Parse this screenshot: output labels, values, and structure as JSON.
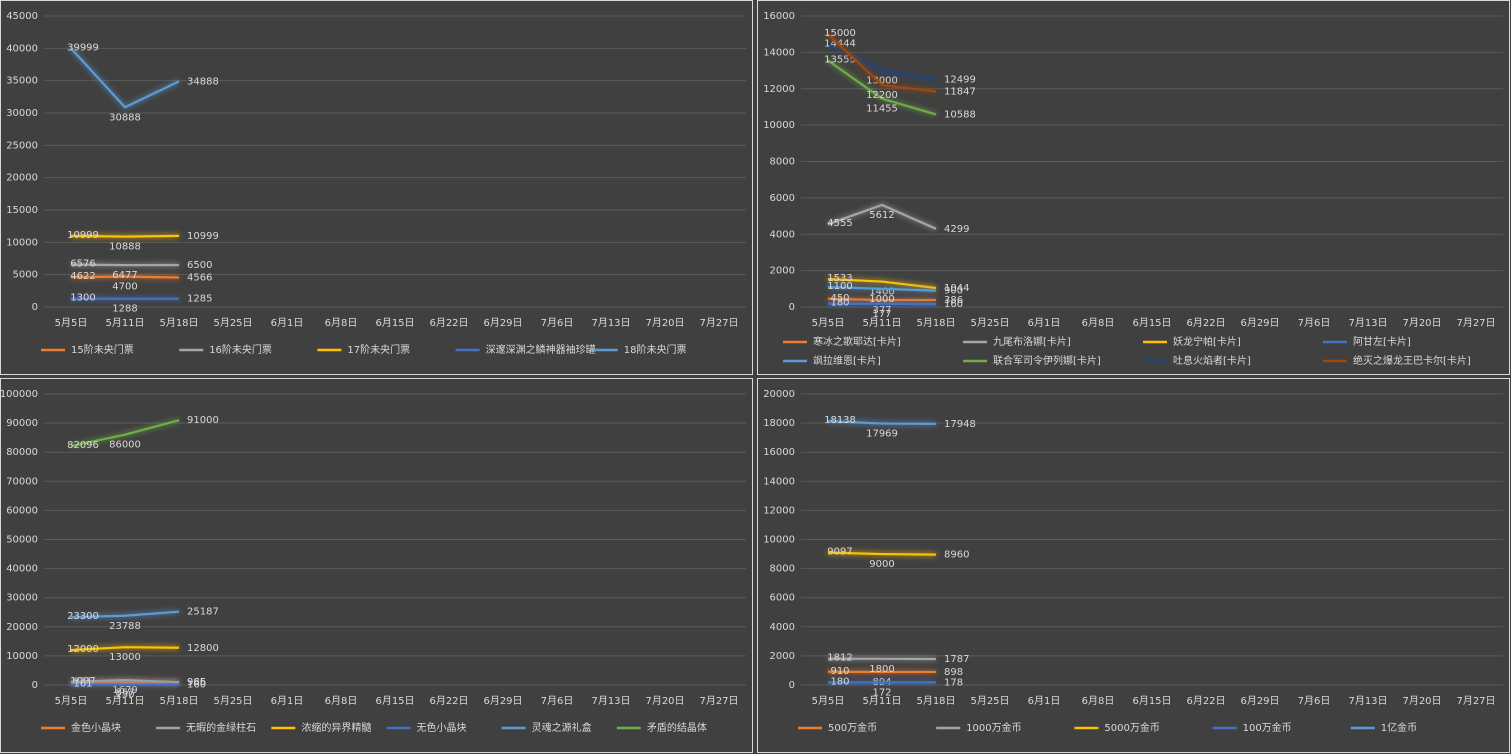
{
  "chart_data": [
    {
      "type": "line",
      "categories": [
        "5月5日",
        "5月11日",
        "5月18日",
        "5月25日",
        "6月1日",
        "6月8日",
        "6月15日",
        "6月22日",
        "6月29日",
        "7月6日",
        "7月13日",
        "7月20日",
        "7月27日"
      ],
      "ylim": [
        0,
        45000
      ],
      "yticks": [
        0,
        5000,
        10000,
        15000,
        20000,
        25000,
        30000,
        35000,
        40000,
        45000
      ],
      "grid": true,
      "series": [
        {
          "name": "15阶未央门票",
          "color": "#ed7d31",
          "values": [
            4622,
            4700,
            4566,
            null,
            null,
            null,
            null,
            null,
            null,
            null,
            null,
            null,
            null
          ]
        },
        {
          "name": "16阶未央门票",
          "color": "#a5a5a5",
          "values": [
            6576,
            6477,
            6500,
            null,
            null,
            null,
            null,
            null,
            null,
            null,
            null,
            null,
            null
          ]
        },
        {
          "name": "17阶未央门票",
          "color": "#ffc000",
          "values": [
            10999,
            10888,
            10999,
            null,
            null,
            null,
            null,
            null,
            null,
            null,
            null,
            null,
            null
          ]
        },
        {
          "name": "深邃深渊之鳞神器袖珍罐",
          "color": "#4472c4",
          "values": [
            1300,
            1288,
            1285,
            null,
            null,
            null,
            null,
            null,
            null,
            null,
            null,
            null,
            null
          ]
        },
        {
          "name": "18阶未央门票",
          "color": "#5b9bd5",
          "values": [
            39999,
            30888,
            34888,
            null,
            null,
            null,
            null,
            null,
            null,
            null,
            null,
            null,
            null
          ]
        }
      ]
    },
    {
      "type": "line",
      "categories": [
        "5月5日",
        "5月11日",
        "5月18日",
        "5月25日",
        "6月1日",
        "6月8日",
        "6月15日",
        "6月22日",
        "6月29日",
        "7月6日",
        "7月13日",
        "7月20日",
        "7月27日"
      ],
      "ylim": [
        0,
        16000
      ],
      "yticks": [
        0,
        2000,
        4000,
        6000,
        8000,
        10000,
        12000,
        14000,
        16000
      ],
      "grid": true,
      "series": [
        {
          "name": "寒冰之歌耶达[卡片]",
          "color": "#ed7d31",
          "values": [
            450,
            377,
            386,
            null,
            null,
            null,
            null,
            null,
            null,
            null,
            null,
            null,
            null
          ]
        },
        {
          "name": "九尾布洛娜[卡片]",
          "color": "#a5a5a5",
          "values": [
            4555,
            5612,
            4299,
            null,
            null,
            null,
            null,
            null,
            null,
            null,
            null,
            null,
            null
          ]
        },
        {
          "name": "妖龙宁帕[卡片]",
          "color": "#ffc000",
          "values": [
            1533,
            1400,
            1044,
            null,
            null,
            null,
            null,
            null,
            null,
            null,
            null,
            null,
            null
          ]
        },
        {
          "name": "阿甘左[卡片]",
          "color": "#4472c4",
          "values": [
            180,
            177,
            160,
            null,
            null,
            null,
            null,
            null,
            null,
            null,
            null,
            null,
            null
          ]
        },
        {
          "name": "飒拉维恩[卡片]",
          "color": "#5b9bd5",
          "values": [
            1100,
            1000,
            900,
            null,
            null,
            null,
            null,
            null,
            null,
            null,
            null,
            null,
            null
          ]
        },
        {
          "name": "联合军司令伊列娜[卡片]",
          "color": "#70ad47",
          "values": [
            13555,
            11455,
            10588,
            null,
            null,
            null,
            null,
            null,
            null,
            null,
            null,
            null,
            null
          ]
        },
        {
          "name": "吐息火焰者[卡片]",
          "color": "#264478",
          "values": [
            14444,
            13000,
            12499,
            null,
            null,
            null,
            null,
            null,
            null,
            null,
            null,
            null,
            null
          ]
        },
        {
          "name": "绝灭之爆龙王巴卡尔[卡片]",
          "color": "#9e480e",
          "values": [
            15000,
            12200,
            11847,
            null,
            null,
            null,
            null,
            null,
            null,
            null,
            null,
            null,
            null
          ]
        }
      ]
    },
    {
      "type": "line",
      "categories": [
        "5月5日",
        "5月11日",
        "5月18日",
        "5月25日",
        "6月1日",
        "6月8日",
        "6月15日",
        "6月22日",
        "6月29日",
        "7月6日",
        "7月13日",
        "7月20日",
        "7月27日"
      ],
      "ylim": [
        0,
        100000
      ],
      "yticks": [
        0,
        10000,
        20000,
        30000,
        40000,
        50000,
        60000,
        70000,
        80000,
        90000,
        100000
      ],
      "grid": true,
      "series": [
        {
          "name": "金色小晶块",
          "color": "#ed7d31",
          "values": [
            821,
            857,
            985,
            null,
            null,
            null,
            null,
            null,
            null,
            null,
            null,
            null,
            null
          ]
        },
        {
          "name": "无暇的金绿柱石",
          "color": "#a5a5a5",
          "values": [
            1097,
            1679,
            966,
            null,
            null,
            null,
            null,
            null,
            null,
            null,
            null,
            null,
            null
          ]
        },
        {
          "name": "浓缩的异界精髓",
          "color": "#ffc000",
          "values": [
            12000,
            13000,
            12800,
            null,
            null,
            null,
            null,
            null,
            null,
            null,
            null,
            null,
            null
          ]
        },
        {
          "name": "无色小晶块",
          "color": "#4472c4",
          "values": [
            161,
            150,
            160,
            null,
            null,
            null,
            null,
            null,
            null,
            null,
            null,
            null,
            null
          ]
        },
        {
          "name": "灵魂之源礼盒",
          "color": "#5b9bd5",
          "values": [
            23300,
            23788,
            25187,
            null,
            null,
            null,
            null,
            null,
            null,
            null,
            null,
            null,
            null
          ]
        },
        {
          "name": "矛盾的结晶体",
          "color": "#70ad47",
          "values": [
            82096,
            86000,
            91000,
            null,
            null,
            null,
            null,
            null,
            null,
            null,
            null,
            null,
            null
          ]
        }
      ]
    },
    {
      "type": "line",
      "categories": [
        "5月5日",
        "5月11日",
        "5月18日",
        "5月25日",
        "6月1日",
        "6月8日",
        "6月15日",
        "6月22日",
        "6月29日",
        "7月6日",
        "7月13日",
        "7月20日",
        "7月27日"
      ],
      "ylim": [
        0,
        20000
      ],
      "yticks": [
        0,
        2000,
        4000,
        6000,
        8000,
        10000,
        12000,
        14000,
        16000,
        18000,
        20000
      ],
      "grid": true,
      "series": [
        {
          "name": "500万金币",
          "color": "#ed7d31",
          "values": [
            910,
            894,
            898,
            null,
            null,
            null,
            null,
            null,
            null,
            null,
            null,
            null,
            null
          ]
        },
        {
          "name": "1000万金币",
          "color": "#a5a5a5",
          "values": [
            1812,
            1800,
            1787,
            null,
            null,
            null,
            null,
            null,
            null,
            null,
            null,
            null,
            null
          ]
        },
        {
          "name": "5000万金币",
          "color": "#ffc000",
          "values": [
            9097,
            9000,
            8960,
            null,
            null,
            null,
            null,
            null,
            null,
            null,
            null,
            null,
            null
          ]
        },
        {
          "name": "100万金币",
          "color": "#4472c4",
          "values": [
            180,
            172,
            178,
            null,
            null,
            null,
            null,
            null,
            null,
            null,
            null,
            null,
            null
          ]
        },
        {
          "name": "1亿金币",
          "color": "#5b9bd5",
          "values": [
            18138,
            17969,
            17948,
            null,
            null,
            null,
            null,
            null,
            null,
            null,
            null,
            null,
            null
          ]
        }
      ]
    }
  ]
}
